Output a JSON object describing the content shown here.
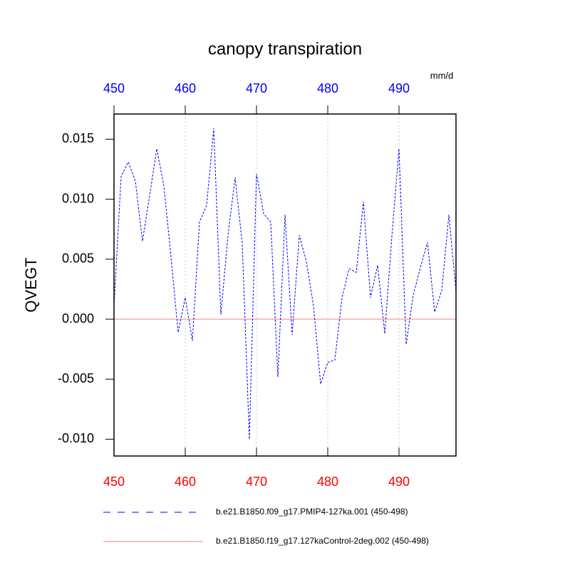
{
  "chart_data": {
    "type": "line",
    "title": "canopy transpiration",
    "ylabel": "QVEGT",
    "units": "mm/d",
    "x": [
      450,
      451,
      452,
      453,
      454,
      455,
      456,
      457,
      458,
      459,
      460,
      461,
      462,
      463,
      464,
      465,
      466,
      467,
      468,
      469,
      470,
      471,
      472,
      473,
      474,
      475,
      476,
      477,
      478,
      479,
      480,
      481,
      482,
      483,
      484,
      485,
      486,
      487,
      488,
      489,
      490,
      491,
      492,
      493,
      494,
      495,
      496,
      497,
      498
    ],
    "series": [
      {
        "name": "b.e21.B1850.f09_g17.PMIP4-127ka.001 (450-498)",
        "color": "#0000ff",
        "dash": true,
        "values": [
          0.0011,
          0.0119,
          0.0131,
          0.0115,
          0.0065,
          0.0103,
          0.0142,
          0.0111,
          0.0052,
          -0.0011,
          0.0018,
          -0.0018,
          0.0081,
          0.0095,
          0.0159,
          0.0004,
          0.007,
          0.0118,
          0.0063,
          -0.01,
          0.0121,
          0.0088,
          0.0081,
          -0.0048,
          0.0087,
          -0.0013,
          0.007,
          0.0048,
          0.0011,
          -0.0054,
          -0.0036,
          -0.0034,
          0.0018,
          0.0042,
          0.0039,
          0.0098,
          0.0018,
          0.0045,
          -0.0012,
          0.0069,
          0.0142,
          -0.0021,
          0.002,
          0.0043,
          0.0064,
          0.0006,
          0.0024,
          0.0087,
          0.0023
        ]
      },
      {
        "name": "b.e21.B1850.f19_g17.127kaControl-2deg.002 (450-498)",
        "color": "#f08080",
        "dash": false,
        "values": [
          0,
          0,
          0,
          0,
          0,
          0,
          0,
          0,
          0,
          0,
          0,
          0,
          0,
          0,
          0,
          0,
          0,
          0,
          0,
          0,
          0,
          0,
          0,
          0,
          0,
          0,
          0,
          0,
          0,
          0,
          0,
          0,
          0,
          0,
          0,
          0,
          0,
          0,
          0,
          0,
          0,
          0,
          0,
          0,
          0,
          0,
          0,
          0,
          0
        ]
      }
    ],
    "xlim": [
      450,
      498
    ],
    "ylim": [
      -0.0114,
      0.0171
    ],
    "xticks": [
      450,
      460,
      470,
      480,
      490
    ],
    "xtick_color": "#ff0000",
    "x2ticks": [
      450,
      460,
      470,
      480,
      490
    ],
    "x2tick_color": "#0000ff",
    "yticks": [
      {
        "value": -0.01,
        "label": "-0.010"
      },
      -0.005,
      {
        "value": 0,
        "label": "0.000"
      },
      0.005,
      {
        "value": 0.01,
        "label": "0.010"
      },
      0.015
    ],
    "grid": "x"
  }
}
